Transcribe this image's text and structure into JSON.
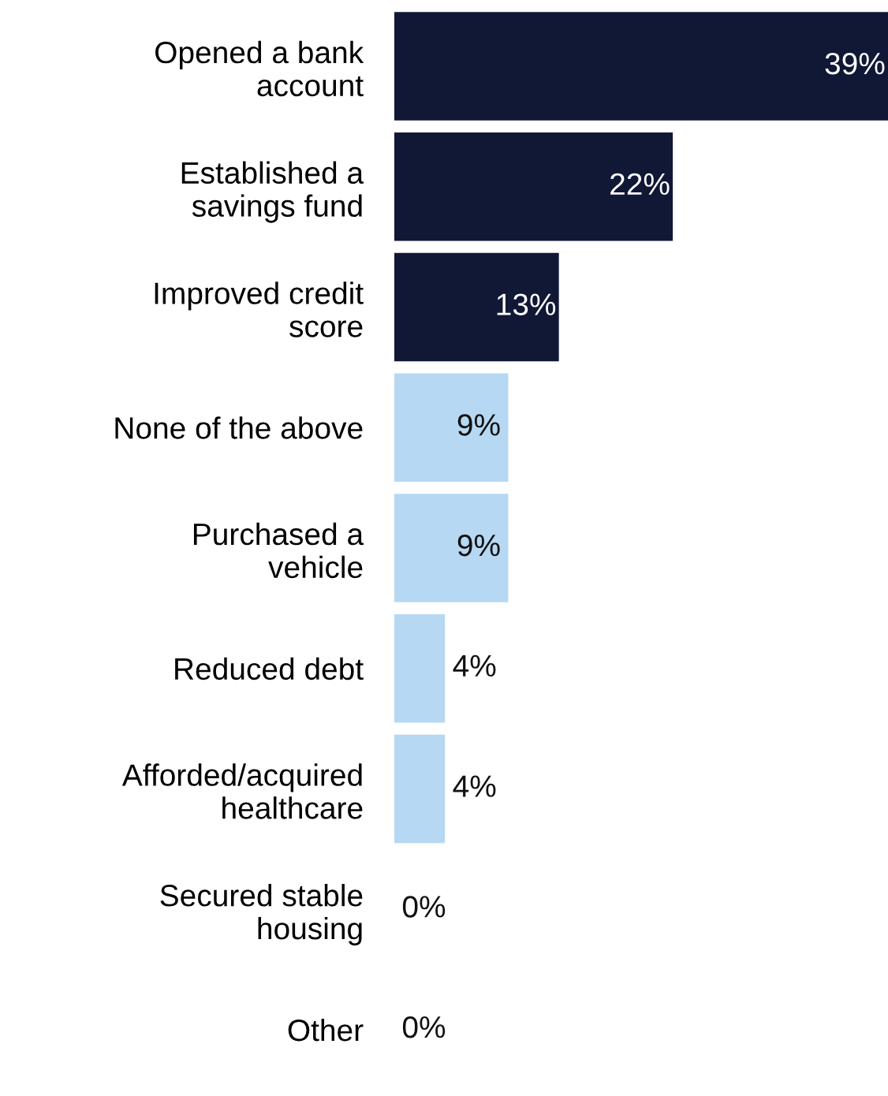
{
  "chart_data": {
    "type": "bar",
    "orientation": "horizontal",
    "value_labels": [
      "39%",
      "22%",
      "13%",
      "9%",
      "9%",
      "4%",
      "4%",
      "0%",
      "0%"
    ],
    "legend": false,
    "grid": false,
    "categories": [
      "Opened a bank account",
      "Established a savings fund",
      "Improved credit score",
      "None of the above",
      "Purchased a vehicle",
      "Reduced debt",
      "Afforded/acquired healthcare",
      "Secured stable housing",
      "Other"
    ],
    "values": [
      39,
      22,
      13,
      9,
      9,
      4,
      4,
      0,
      0
    ],
    "colors": [
      "#111836",
      "#111836",
      "#111836",
      "#b6d8f2",
      "#b6d8f2",
      "#b6d8f2",
      "#b6d8f2",
      "#b6d8f2",
      "#b6d8f2"
    ],
    "tick_labels": "y"
  }
}
